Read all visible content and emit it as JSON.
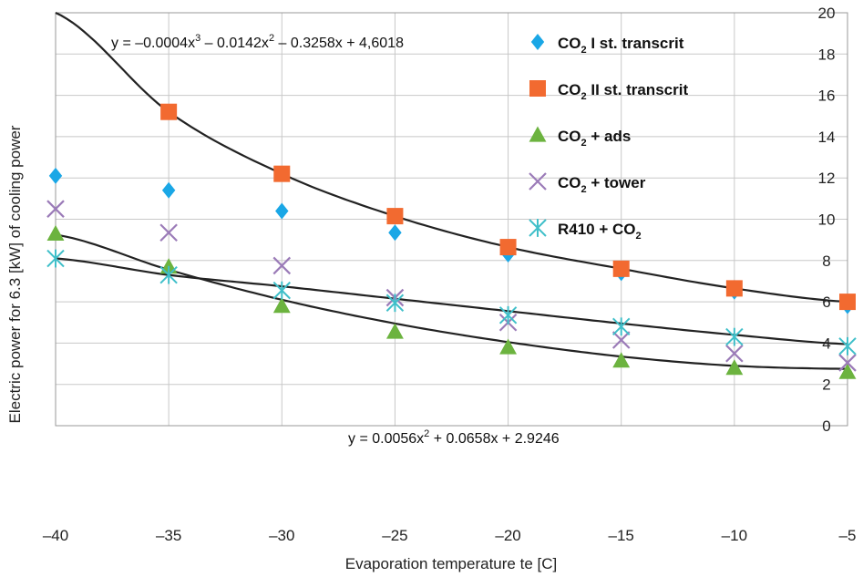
{
  "chart_data": {
    "type": "scatter",
    "xlabel": "Evaporation temperature te [C]",
    "ylabel": "Electric power for 6.3 [kW] of cooling power",
    "xlim": [
      -40,
      -5
    ],
    "ylim": [
      0,
      20
    ],
    "xticks": [
      -40,
      -35,
      -30,
      -25,
      -20,
      -15,
      -10,
      -5
    ],
    "yticks": [
      0,
      2,
      4,
      6,
      8,
      10,
      12,
      14,
      16,
      18,
      20
    ],
    "xtick_labels": [
      "–40",
      "–35",
      "–30",
      "–25",
      "–20",
      "–15",
      "–10",
      "–5"
    ],
    "ytick_labels": [
      "0",
      "2",
      "4",
      "6",
      "8",
      "10",
      "12",
      "14",
      "16",
      "18",
      "20"
    ],
    "grid": true,
    "legend_position": "top-right",
    "x": [
      -40,
      -35,
      -30,
      -25,
      -20,
      -15,
      -10,
      -5
    ],
    "series": [
      {
        "name": "CO2 I st. transcrit",
        "name_main": "CO",
        "name_sub": "2",
        "name_rest": " I st. transcrit",
        "marker": "diamond",
        "color": "#1aa7e6",
        "values": [
          12.1,
          11.4,
          10.4,
          9.35,
          8.3,
          7.4,
          6.5,
          5.8
        ]
      },
      {
        "name": "CO2 II st. transcrit",
        "name_main": "CO",
        "name_sub": "2",
        "name_rest": " II st. transcrit",
        "marker": "square",
        "color": "#f26a30",
        "values": [
          null,
          15.2,
          12.2,
          10.15,
          8.65,
          7.6,
          6.65,
          6.0
        ]
      },
      {
        "name": "CO2 + ads",
        "name_main": "CO",
        "name_sub": "2",
        "name_rest": " + ads",
        "marker": "triangle",
        "color": "#6cb33f",
        "values": [
          9.3,
          7.7,
          5.8,
          4.55,
          3.8,
          3.15,
          2.8,
          2.6
        ]
      },
      {
        "name": "CO2 + tower",
        "name_main": "CO",
        "name_sub": "2",
        "name_rest": " + tower",
        "marker": "x",
        "color": "#9b7bb8",
        "values": [
          10.5,
          9.35,
          7.75,
          6.2,
          5.0,
          4.15,
          3.5,
          3.05
        ]
      },
      {
        "name": "R410 + CO2",
        "name_main": "R410 + CO",
        "name_sub": "2",
        "name_rest": "",
        "marker": "asterisk",
        "color": "#3fbfc9",
        "values": [
          8.1,
          7.3,
          6.55,
          5.95,
          5.35,
          4.8,
          4.3,
          3.85
        ]
      }
    ],
    "trendlines": [
      {
        "type": "poly3",
        "coefficients": [
          -0.0004,
          -0.0142,
          -0.3258,
          4.6018
        ]
      },
      {
        "type": "poly2",
        "coefficients": [
          0.0056,
          0.0658,
          2.9246
        ]
      },
      {
        "type": "log-like",
        "points": [
          [
            -40,
            8.1
          ],
          [
            -35,
            7.3
          ],
          [
            -30,
            6.75
          ],
          [
            -25,
            6.15
          ],
          [
            -20,
            5.55
          ],
          [
            -15,
            4.95
          ],
          [
            -10,
            4.4
          ],
          [
            -5,
            3.95
          ]
        ]
      }
    ],
    "annotations": {
      "eq1": {
        "p1": "y = –0.0004x",
        "s1": "3",
        "p2": " – 0.0142x",
        "s2": "2",
        "p3": " – 0.3258x + 4,6018"
      },
      "eq2": {
        "p1": "y = 0.0056x",
        "s1": "2",
        "p2": " + 0.0658x + 2.9246"
      }
    }
  }
}
